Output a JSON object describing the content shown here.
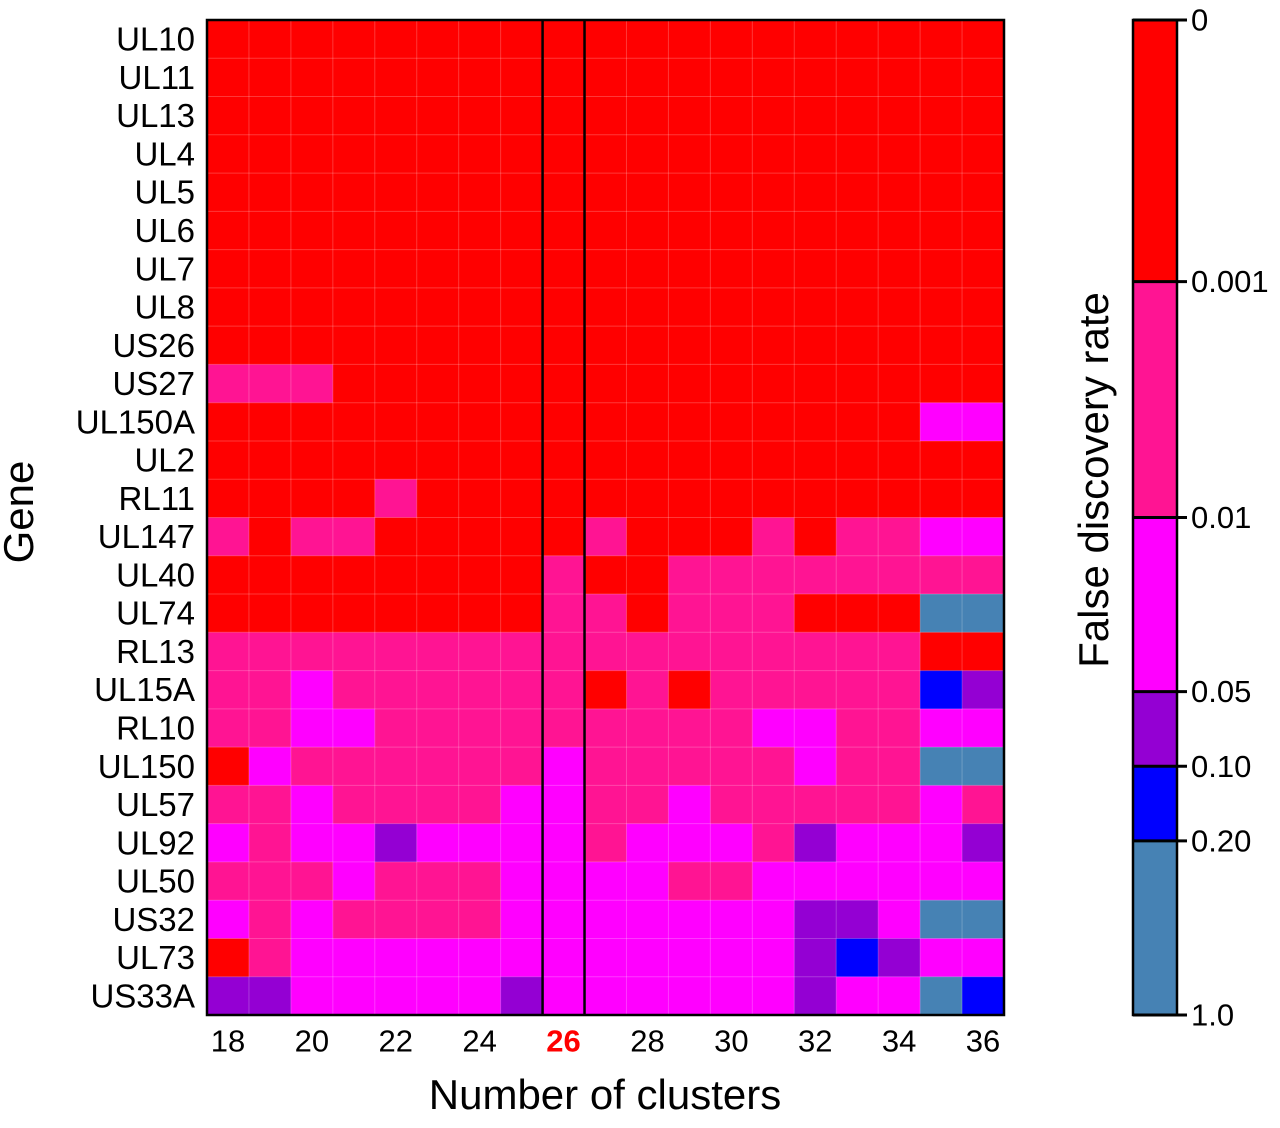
{
  "chart_data": {
    "type": "heatmap",
    "xlabel": "Number of clusters",
    "ylabel": "Gene",
    "colorbar_label": "False discovery rate",
    "x": [
      18,
      19,
      20,
      21,
      22,
      23,
      24,
      25,
      26,
      27,
      28,
      29,
      30,
      31,
      32,
      33,
      34,
      35,
      36
    ],
    "x_tick_labels": [
      "18",
      "20",
      "22",
      "24",
      "26",
      "28",
      "30",
      "32",
      "34",
      "36"
    ],
    "highlighted_x": 26,
    "highlight_color": "#ff0000",
    "genes": [
      "UL10",
      "UL11",
      "UL13",
      "UL4",
      "UL5",
      "UL6",
      "UL7",
      "UL8",
      "US26",
      "US27",
      "UL150A",
      "UL2",
      "RL11",
      "UL147",
      "UL40",
      "UL74",
      "RL13",
      "UL15A",
      "RL10",
      "UL150",
      "UL57",
      "UL92",
      "UL50",
      "US32",
      "UL73",
      "US33A"
    ],
    "fdr_bins": [
      "<0.001",
      "0.001-0.01",
      "0.01-0.05",
      "0.05-0.10",
      "0.10-0.20",
      "0.20-1.0"
    ],
    "bin_colors": [
      "#ff0000",
      "#ff1493",
      "#ff00ff",
      "#9400d3",
      "#0000ff",
      "#4682b4"
    ],
    "colorbar_ticks": [
      "0",
      "0.001",
      "0.01",
      "0.05",
      "0.10",
      "0.20",
      "1.0"
    ],
    "matrix_bins": [
      [
        0,
        0,
        0,
        0,
        0,
        0,
        0,
        0,
        0,
        0,
        0,
        0,
        0,
        0,
        0,
        0,
        0,
        0,
        0
      ],
      [
        0,
        0,
        0,
        0,
        0,
        0,
        0,
        0,
        0,
        0,
        0,
        0,
        0,
        0,
        0,
        0,
        0,
        0,
        0
      ],
      [
        0,
        0,
        0,
        0,
        0,
        0,
        0,
        0,
        0,
        0,
        0,
        0,
        0,
        0,
        0,
        0,
        0,
        0,
        0
      ],
      [
        0,
        0,
        0,
        0,
        0,
        0,
        0,
        0,
        0,
        0,
        0,
        0,
        0,
        0,
        0,
        0,
        0,
        0,
        0
      ],
      [
        0,
        0,
        0,
        0,
        0,
        0,
        0,
        0,
        0,
        0,
        0,
        0,
        0,
        0,
        0,
        0,
        0,
        0,
        0
      ],
      [
        0,
        0,
        0,
        0,
        0,
        0,
        0,
        0,
        0,
        0,
        0,
        0,
        0,
        0,
        0,
        0,
        0,
        0,
        0
      ],
      [
        0,
        0,
        0,
        0,
        0,
        0,
        0,
        0,
        0,
        0,
        0,
        0,
        0,
        0,
        0,
        0,
        0,
        0,
        0
      ],
      [
        0,
        0,
        0,
        0,
        0,
        0,
        0,
        0,
        0,
        0,
        0,
        0,
        0,
        0,
        0,
        0,
        0,
        0,
        0
      ],
      [
        0,
        0,
        0,
        0,
        0,
        0,
        0,
        0,
        0,
        0,
        0,
        0,
        0,
        0,
        0,
        0,
        0,
        0,
        0
      ],
      [
        1,
        1,
        1,
        0,
        0,
        0,
        0,
        0,
        0,
        0,
        0,
        0,
        0,
        0,
        0,
        0,
        0,
        0,
        0
      ],
      [
        0,
        0,
        0,
        0,
        0,
        0,
        0,
        0,
        0,
        0,
        0,
        0,
        0,
        0,
        0,
        0,
        0,
        2,
        2
      ],
      [
        0,
        0,
        0,
        0,
        0,
        0,
        0,
        0,
        0,
        0,
        0,
        0,
        0,
        0,
        0,
        0,
        0,
        0,
        0
      ],
      [
        0,
        0,
        0,
        0,
        1,
        0,
        0,
        0,
        0,
        0,
        0,
        0,
        0,
        0,
        0,
        0,
        0,
        0,
        0
      ],
      [
        1,
        0,
        1,
        1,
        0,
        0,
        0,
        0,
        0,
        1,
        0,
        0,
        0,
        1,
        0,
        1,
        1,
        2,
        2
      ],
      [
        0,
        0,
        0,
        0,
        0,
        0,
        0,
        0,
        1,
        0,
        0,
        1,
        1,
        1,
        1,
        1,
        1,
        1,
        1
      ],
      [
        0,
        0,
        0,
        0,
        0,
        0,
        0,
        0,
        1,
        1,
        0,
        1,
        1,
        1,
        0,
        0,
        0,
        5,
        5
      ],
      [
        1,
        1,
        1,
        1,
        1,
        1,
        1,
        1,
        1,
        1,
        1,
        1,
        1,
        1,
        1,
        1,
        1,
        0,
        0
      ],
      [
        1,
        1,
        2,
        1,
        1,
        1,
        1,
        1,
        1,
        0,
        1,
        0,
        1,
        1,
        1,
        1,
        1,
        4,
        3
      ],
      [
        1,
        1,
        2,
        2,
        1,
        1,
        1,
        1,
        1,
        1,
        1,
        1,
        1,
        2,
        2,
        1,
        1,
        2,
        2
      ],
      [
        0,
        2,
        1,
        1,
        1,
        1,
        1,
        1,
        2,
        1,
        1,
        1,
        1,
        1,
        2,
        1,
        1,
        5,
        5
      ],
      [
        1,
        1,
        2,
        1,
        1,
        1,
        1,
        2,
        2,
        1,
        1,
        2,
        1,
        1,
        1,
        1,
        1,
        2,
        1
      ],
      [
        2,
        1,
        2,
        2,
        3,
        2,
        2,
        2,
        2,
        1,
        2,
        2,
        2,
        1,
        3,
        2,
        2,
        2,
        3
      ],
      [
        1,
        1,
        1,
        2,
        1,
        1,
        1,
        2,
        2,
        2,
        2,
        1,
        1,
        2,
        2,
        2,
        2,
        2,
        2
      ],
      [
        2,
        1,
        2,
        1,
        1,
        1,
        1,
        2,
        2,
        2,
        2,
        2,
        2,
        2,
        3,
        3,
        2,
        5,
        5
      ],
      [
        0,
        1,
        2,
        2,
        2,
        2,
        2,
        2,
        2,
        2,
        2,
        2,
        2,
        2,
        3,
        4,
        3,
        2,
        2
      ],
      [
        3,
        3,
        2,
        2,
        2,
        2,
        2,
        3,
        2,
        2,
        2,
        2,
        2,
        2,
        3,
        2,
        2,
        5,
        4
      ]
    ]
  }
}
